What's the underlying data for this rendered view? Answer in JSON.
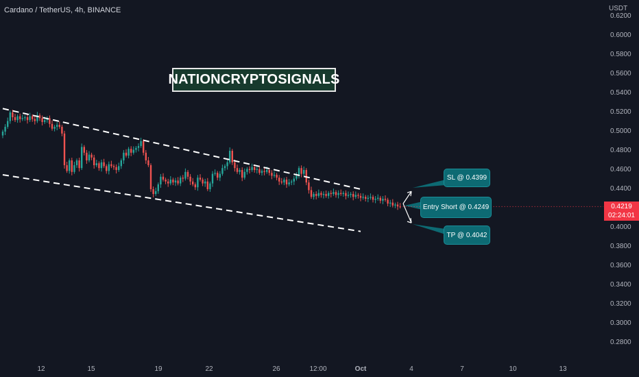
{
  "header": {
    "title": "Cardano / TetherUS, 4h, BINANCE"
  },
  "brand": {
    "text": "NATIONCRYPTOSIGNALS"
  },
  "price_tag": {
    "price": "0.4219",
    "countdown": "02:24:01"
  },
  "annotations": {
    "sl": "SL @ 0.4399",
    "entry": "Entry Short @ 0.4249",
    "tp": "TP @ 0.4042"
  },
  "colors": {
    "background": "#131722",
    "up": "#26a69a",
    "down": "#ef5350",
    "bubble": "#0d6a73",
    "price_tag": "#f23645"
  },
  "chart_data": {
    "type": "candlestick",
    "title": "Cardano / TetherUS, 4h, BINANCE",
    "y_unit": "USDT",
    "ylim": [
      0.27,
      0.628
    ],
    "y_ticks": [
      "0.6200",
      "0.6000",
      "0.5800",
      "0.5600",
      "0.5400",
      "0.5200",
      "0.5000",
      "0.4800",
      "0.4600",
      "0.4400",
      "0.4200",
      "0.4000",
      "0.3800",
      "0.3600",
      "0.3400",
      "0.3200",
      "0.3000",
      "0.2800"
    ],
    "x_ticks": [
      "12",
      "15",
      "19",
      "22",
      "26",
      "12:00",
      "Oct",
      "4",
      "7",
      "10",
      "13"
    ],
    "current_price": 0.4219,
    "candles_close": [
      0.5,
      0.505,
      0.511,
      0.52,
      0.515,
      0.512,
      0.516,
      0.513,
      0.514,
      0.515,
      0.512,
      0.516,
      0.513,
      0.511,
      0.517,
      0.514,
      0.51,
      0.512,
      0.514,
      0.508,
      0.503,
      0.505,
      0.507,
      0.505,
      0.498,
      0.465,
      0.459,
      0.47,
      0.458,
      0.465,
      0.47,
      0.462,
      0.484,
      0.478,
      0.47,
      0.476,
      0.473,
      0.465,
      0.467,
      0.462,
      0.468,
      0.464,
      0.459,
      0.466,
      0.464,
      0.463,
      0.46,
      0.464,
      0.47,
      0.478,
      0.475,
      0.482,
      0.478,
      0.481,
      0.483,
      0.485,
      0.49,
      0.478,
      0.47,
      0.465,
      0.44,
      0.435,
      0.438,
      0.445,
      0.453,
      0.45,
      0.448,
      0.446,
      0.45,
      0.447,
      0.449,
      0.446,
      0.452,
      0.451,
      0.458,
      0.453,
      0.448,
      0.445,
      0.442,
      0.452,
      0.45,
      0.446,
      0.448,
      0.44,
      0.446,
      0.456,
      0.457,
      0.452,
      0.456,
      0.462,
      0.464,
      0.468,
      0.48,
      0.468,
      0.462,
      0.458,
      0.46,
      0.452,
      0.458,
      0.461,
      0.46,
      0.463,
      0.46,
      0.461,
      0.457,
      0.459,
      0.458,
      0.46,
      0.457,
      0.454,
      0.455,
      0.452,
      0.448,
      0.447,
      0.45,
      0.445,
      0.447,
      0.448,
      0.451,
      0.454,
      0.462,
      0.456,
      0.46,
      0.447,
      0.439,
      0.432,
      0.435,
      0.433,
      0.436,
      0.434,
      0.435,
      0.433,
      0.436,
      0.435,
      0.437,
      0.434,
      0.436,
      0.435,
      0.436,
      0.433,
      0.434,
      0.435,
      0.432,
      0.434,
      0.433,
      0.431,
      0.432,
      0.43,
      0.431,
      0.432,
      0.429,
      0.43,
      0.431,
      0.428,
      0.43,
      0.429,
      0.425,
      0.426,
      0.423,
      0.424,
      0.422,
      0.4219
    ],
    "channel": {
      "upper": {
        "start": [
          0,
          0.524
        ],
        "end": [
          145,
          0.44
        ]
      },
      "lower": {
        "start": [
          0,
          0.455
        ],
        "end": [
          145,
          0.396
        ]
      }
    },
    "levels": {
      "sl": 0.4399,
      "entry": 0.4249,
      "tp": 0.4042
    },
    "grid": false,
    "legend": "none"
  }
}
